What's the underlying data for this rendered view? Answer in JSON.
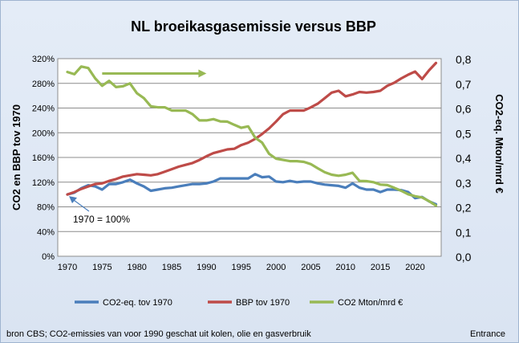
{
  "chart_data": {
    "type": "line",
    "title": "NL broeikasgasemissie versus BBP",
    "ylabel_left": "CO2 en BBP tov 1970",
    "ylabel_right": "CO2-eq. Mton/mrd €",
    "xlim": [
      1970,
      2023
    ],
    "x_ticks": [
      1970,
      1975,
      1980,
      1985,
      1990,
      1995,
      2000,
      2005,
      2010,
      2015,
      2020
    ],
    "y_left": {
      "min": 0,
      "max": 320,
      "step": 40,
      "tick_labels": [
        "0%",
        "40%",
        "80%",
        "120%",
        "160%",
        "200%",
        "240%",
        "280%",
        "320%"
      ]
    },
    "y_right": {
      "min": 0,
      "max": 0.8,
      "step": 0.1,
      "tick_labels": [
        "0,0",
        "0,1",
        "0,2",
        "0,3",
        "0,4",
        "0,5",
        "0,6",
        "0,7",
        "0,8"
      ]
    },
    "grid": "horizontal",
    "legend_position": "bottom",
    "x": [
      1970,
      1971,
      1972,
      1973,
      1974,
      1975,
      1976,
      1977,
      1978,
      1979,
      1980,
      1981,
      1982,
      1983,
      1984,
      1985,
      1986,
      1987,
      1988,
      1989,
      1990,
      1991,
      1992,
      1993,
      1994,
      1995,
      1996,
      1997,
      1998,
      1999,
      2000,
      2001,
      2002,
      2003,
      2004,
      2005,
      2006,
      2007,
      2008,
      2009,
      2010,
      2011,
      2012,
      2013,
      2014,
      2015,
      2016,
      2017,
      2018,
      2019,
      2020,
      2021,
      2022,
      2023
    ],
    "series": [
      {
        "name": "CO2-eq. tov 1970",
        "axis": "left",
        "color": "#4a7ebb",
        "values": [
          100,
          103,
          110,
          115,
          113,
          108,
          117,
          117,
          120,
          124,
          118,
          113,
          106,
          108,
          110,
          111,
          113,
          115,
          117,
          117,
          118,
          121,
          126,
          126,
          126,
          126,
          126,
          133,
          128,
          129,
          121,
          120,
          122,
          120,
          121,
          121,
          118,
          116,
          115,
          114,
          111,
          118,
          111,
          108,
          108,
          104,
          108,
          108,
          107,
          104,
          94,
          96,
          89,
          84
        ]
      },
      {
        "name": "BBP tov 1970",
        "axis": "left",
        "color": "#be4b48",
        "values": [
          100,
          104,
          109,
          113,
          117,
          118,
          122,
          125,
          129,
          131,
          133,
          132,
          131,
          133,
          137,
          141,
          145,
          148,
          151,
          156,
          162,
          167,
          170,
          173,
          174,
          180,
          184,
          190,
          198,
          207,
          218,
          230,
          236,
          236,
          236,
          241,
          247,
          256,
          265,
          268,
          259,
          262,
          266,
          265,
          266,
          268,
          276,
          281,
          288,
          294,
          299,
          287,
          301,
          313
        ]
      },
      {
        "name": "CO2 Mton/mrd €",
        "axis": "right",
        "color": "#98b954",
        "values": [
          0.746,
          0.737,
          0.768,
          0.762,
          0.72,
          0.69,
          0.71,
          0.685,
          0.688,
          0.7,
          0.66,
          0.64,
          0.607,
          0.603,
          0.603,
          0.59,
          0.59,
          0.59,
          0.575,
          0.55,
          0.55,
          0.555,
          0.546,
          0.545,
          0.532,
          0.52,
          0.526,
          0.48,
          0.46,
          0.415,
          0.395,
          0.39,
          0.385,
          0.385,
          0.382,
          0.373,
          0.356,
          0.34,
          0.33,
          0.326,
          0.33,
          0.338,
          0.305,
          0.304,
          0.3,
          0.29,
          0.288,
          0.277,
          0.265,
          0.251,
          0.243,
          0.238,
          0.223,
          0.205
        ]
      }
    ],
    "annotations": [
      {
        "text": "1970 = 100%",
        "arrow_to": {
          "x": 1970,
          "y_left": 100
        }
      },
      {
        "arrow_from": {
          "x": 1975,
          "y_right": 0.74
        },
        "arrow_to": {
          "x": 1990,
          "y_right": 0.74
        }
      }
    ]
  },
  "footer": {
    "source": "bron CBS; CO2-emissies van voor 1990 geschat uit kolen, olie en gasverbruik",
    "credit": "Entrance"
  }
}
